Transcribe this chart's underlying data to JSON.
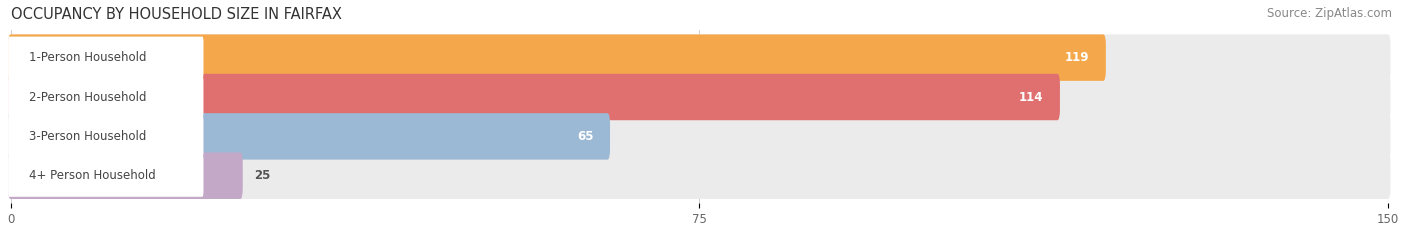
{
  "title": "OCCUPANCY BY HOUSEHOLD SIZE IN FAIRFAX",
  "source": "Source: ZipAtlas.com",
  "categories": [
    "1-Person Household",
    "2-Person Household",
    "3-Person Household",
    "4+ Person Household"
  ],
  "values": [
    119,
    114,
    65,
    25
  ],
  "bar_colors": [
    "#F5A84B",
    "#E07070",
    "#9BB8D4",
    "#C4A8C8"
  ],
  "bar_bg_color": "#EBEBEB",
  "xlim": [
    0,
    150
  ],
  "xticks": [
    0,
    75,
    150
  ],
  "title_fontsize": 10.5,
  "source_fontsize": 8.5,
  "bar_label_fontsize": 8.5,
  "cat_label_fontsize": 8.5,
  "background_color": "#FFFFFF",
  "figsize": [
    14.06,
    2.33
  ],
  "dpi": 100
}
